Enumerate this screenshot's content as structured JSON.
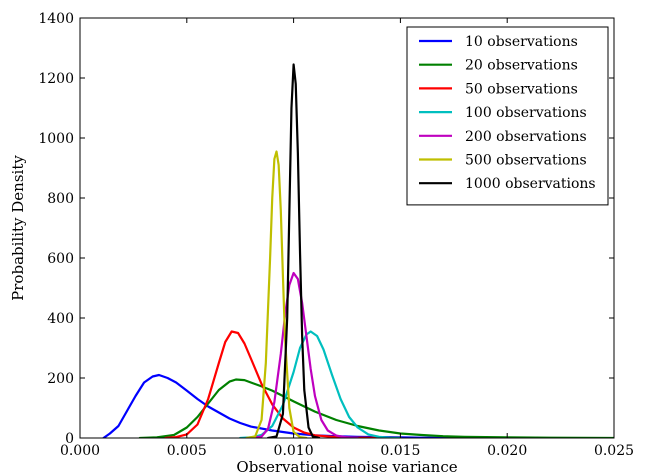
{
  "chart_data": {
    "type": "line",
    "title": "",
    "xlabel": "Observational noise variance",
    "ylabel": "Probability Density",
    "xlim": [
      0.0,
      0.025
    ],
    "ylim": [
      0,
      1400
    ],
    "xticks": [
      0.0,
      0.005,
      0.01,
      0.015,
      0.02,
      0.025
    ],
    "xtick_labels": [
      "0.000",
      "0.005",
      "0.010",
      "0.015",
      "0.020",
      "0.025"
    ],
    "yticks": [
      0,
      200,
      400,
      600,
      800,
      1000,
      1200,
      1400
    ],
    "ytick_labels": [
      "0",
      "200",
      "400",
      "600",
      "800",
      "1000",
      "1200",
      "1400"
    ],
    "grid": false,
    "legend_position": "top-right",
    "series": [
      {
        "name": "10 observations",
        "color": "#0000ff",
        "x": [
          0.0011,
          0.0014,
          0.0018,
          0.0022,
          0.0026,
          0.003,
          0.0034,
          0.0037,
          0.0041,
          0.0045,
          0.005,
          0.0055,
          0.006,
          0.0065,
          0.007,
          0.0075,
          0.008,
          0.009,
          0.01,
          0.011,
          0.012,
          0.013,
          0.014,
          0.015,
          0.016,
          0.018,
          0.02
        ],
        "y": [
          0,
          15,
          40,
          90,
          140,
          185,
          205,
          210,
          200,
          185,
          158,
          130,
          105,
          85,
          65,
          50,
          38,
          25,
          15,
          9,
          6,
          4,
          3,
          2,
          1,
          0.5,
          0
        ]
      },
      {
        "name": "20 observations",
        "color": "#008000",
        "x": [
          0.0028,
          0.0036,
          0.0044,
          0.005,
          0.0055,
          0.006,
          0.0065,
          0.007,
          0.0073,
          0.0077,
          0.008,
          0.0085,
          0.009,
          0.0095,
          0.01,
          0.0105,
          0.011,
          0.012,
          0.013,
          0.014,
          0.015,
          0.016,
          0.017,
          0.018,
          0.02,
          0.022,
          0.025
        ],
        "y": [
          0,
          2,
          10,
          35,
          70,
          115,
          160,
          188,
          195,
          193,
          185,
          172,
          158,
          140,
          122,
          105,
          88,
          60,
          40,
          25,
          15,
          10,
          6,
          4,
          2,
          1,
          0
        ]
      },
      {
        "name": "50 observations",
        "color": "#ff0000",
        "x": [
          0.004,
          0.0045,
          0.005,
          0.0055,
          0.006,
          0.0065,
          0.0068,
          0.0071,
          0.0074,
          0.0077,
          0.008,
          0.0085,
          0.009,
          0.0095,
          0.01,
          0.0105,
          0.011,
          0.012,
          0.013,
          0.015
        ],
        "y": [
          0,
          3,
          12,
          45,
          130,
          250,
          320,
          355,
          350,
          315,
          265,
          180,
          112,
          65,
          35,
          18,
          9,
          3,
          1,
          0
        ]
      },
      {
        "name": "100 observations",
        "color": "#00bfbf",
        "x": [
          0.0075,
          0.008,
          0.0085,
          0.009,
          0.0095,
          0.01,
          0.0103,
          0.0106,
          0.0108,
          0.0111,
          0.0114,
          0.0118,
          0.0122,
          0.0126,
          0.013,
          0.0135,
          0.014,
          0.0145,
          0.015
        ],
        "y": [
          0,
          2,
          10,
          40,
          110,
          220,
          300,
          345,
          355,
          340,
          295,
          210,
          130,
          70,
          35,
          12,
          4,
          1,
          0
        ]
      },
      {
        "name": "200 observations",
        "color": "#bf00bf",
        "x": [
          0.008,
          0.0085,
          0.0088,
          0.0091,
          0.0094,
          0.0096,
          0.0098,
          0.01,
          0.0102,
          0.0104,
          0.0106,
          0.0108,
          0.011,
          0.0113,
          0.0116,
          0.012,
          0.0125,
          0.013
        ],
        "y": [
          0,
          5,
          30,
          120,
          280,
          410,
          510,
          550,
          530,
          450,
          340,
          230,
          140,
          60,
          25,
          8,
          2,
          0
        ]
      },
      {
        "name": "500 observations",
        "color": "#bfbf00",
        "x": [
          0.0078,
          0.0082,
          0.0085,
          0.0087,
          0.0089,
          0.009,
          0.0091,
          0.0092,
          0.0093,
          0.0094,
          0.0095,
          0.0096,
          0.0098,
          0.01,
          0.0103,
          0.0106
        ],
        "y": [
          0,
          5,
          60,
          250,
          600,
          800,
          930,
          955,
          910,
          760,
          540,
          330,
          100,
          20,
          3,
          0
        ]
      },
      {
        "name": "1000 observations",
        "color": "#000000",
        "x": [
          0.0088,
          0.0092,
          0.0095,
          0.0097,
          0.0098,
          0.0099,
          0.01,
          0.0101,
          0.0102,
          0.0103,
          0.0104,
          0.0105,
          0.0107,
          0.0109,
          0.0112
        ],
        "y": [
          0,
          5,
          80,
          400,
          750,
          1100,
          1245,
          1180,
          950,
          620,
          340,
          160,
          35,
          5,
          0
        ]
      }
    ]
  }
}
